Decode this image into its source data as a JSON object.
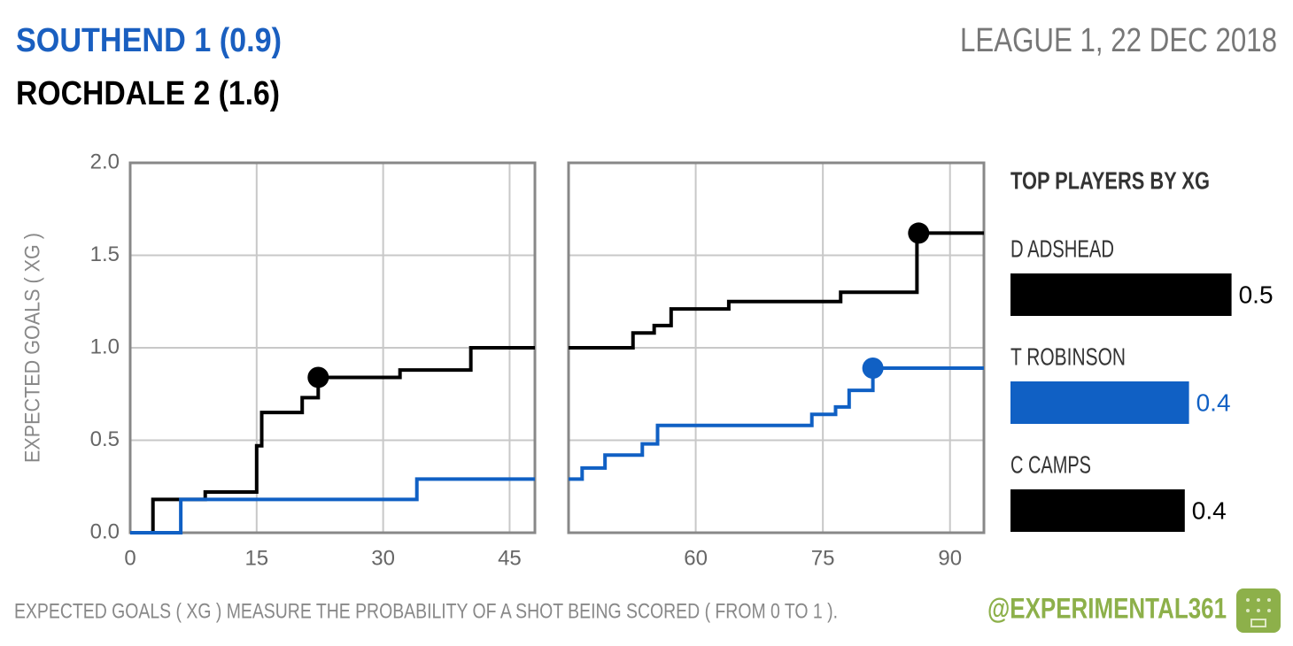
{
  "header": {
    "home": "SOUTHEND 1 (0.9)",
    "away": "ROCHDALE 2 (1.6)",
    "competition": "LEAGUE 1, 22 DEC 2018"
  },
  "footer": {
    "note": "EXPECTED GOALS ( XG ) MEASURE THE PROBABILITY OF A SHOT BEING SCORED ( FROM 0 TO 1 ).",
    "handle": "@EXPERIMENTAL361"
  },
  "chart_data": [
    {
      "type": "step",
      "ylabel": "EXPECTED GOALS ( XG )",
      "xlim": [
        0,
        48
      ],
      "xticks": [
        0,
        15,
        30,
        45
      ],
      "ylim": [
        0,
        2
      ],
      "yticks": [
        {
          "value": 0,
          "label": "0.0"
        },
        0.5,
        {
          "value": 1,
          "label": "1.0"
        },
        1.5,
        {
          "value": 2,
          "label": "2.0"
        }
      ],
      "grid": true,
      "series": [
        {
          "color": "#000000",
          "x": [
            0,
            2.7,
            8.9,
            15.0,
            15.6,
            20.4,
            22.3,
            32.0,
            40.4,
            48
          ],
          "values": [
            0,
            0.18,
            0.22,
            0.47,
            0.65,
            0.73,
            0.84,
            0.88,
            1.0,
            1.0
          ],
          "goal_x": [
            22.3
          ],
          "goal_y": [
            0.84
          ]
        },
        {
          "color": "#1060c4",
          "x": [
            0,
            6.0,
            34.0,
            48
          ],
          "values": [
            0,
            0.18,
            0.29,
            0.29
          ],
          "goal_x": [],
          "goal_y": []
        }
      ]
    },
    {
      "type": "step",
      "xlim": [
        45,
        94
      ],
      "xticks": [
        60,
        75,
        90
      ],
      "grid": true,
      "series": [
        {
          "color": "#000000",
          "x": [
            45,
            52.6,
            55.1,
            57.1,
            63.9,
            77.1,
            86.1,
            94
          ],
          "values": [
            1.0,
            1.08,
            1.12,
            1.21,
            1.25,
            1.3,
            1.62,
            1.62
          ],
          "goal_x": [
            86.3
          ],
          "goal_y": [
            1.62
          ]
        },
        {
          "color": "#1060c4",
          "x": [
            45,
            46.6,
            49.3,
            53.7,
            55.5,
            73.7,
            76.5,
            78.1,
            80.9,
            94
          ],
          "values": [
            0.29,
            0.35,
            0.42,
            0.48,
            0.58,
            0.64,
            0.68,
            0.77,
            0.89,
            0.89
          ],
          "goal_x": [
            80.9
          ],
          "goal_y": [
            0.89
          ]
        }
      ]
    },
    {
      "type": "bar",
      "title": "TOP PLAYERS BY XG",
      "categories": [
        "D ADSHEAD",
        "T ROBINSON",
        "C CAMPS"
      ],
      "values": [
        0.52,
        0.42,
        0.41
      ],
      "value_labels": [
        "0.5",
        "0.4",
        "0.4"
      ],
      "colors": [
        "#000000",
        "#1060c4",
        "#000000"
      ]
    }
  ]
}
